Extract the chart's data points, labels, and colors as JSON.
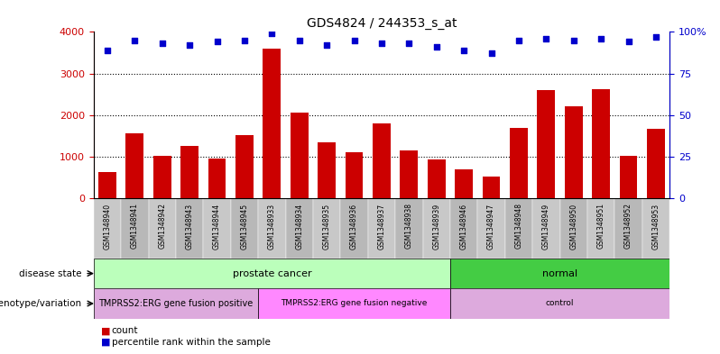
{
  "title": "GDS4824 / 244353_s_at",
  "samples": [
    "GSM1348940",
    "GSM1348941",
    "GSM1348942",
    "GSM1348943",
    "GSM1348944",
    "GSM1348945",
    "GSM1348933",
    "GSM1348934",
    "GSM1348935",
    "GSM1348936",
    "GSM1348937",
    "GSM1348938",
    "GSM1348939",
    "GSM1348946",
    "GSM1348947",
    "GSM1348948",
    "GSM1348949",
    "GSM1348950",
    "GSM1348951",
    "GSM1348952",
    "GSM1348953"
  ],
  "counts": [
    620,
    1570,
    1020,
    1260,
    960,
    1510,
    3600,
    2060,
    1350,
    1110,
    1800,
    1160,
    940,
    690,
    520,
    1690,
    2600,
    2200,
    2620,
    1020,
    1680
  ],
  "percentiles": [
    89,
    95,
    93,
    92,
    94,
    95,
    99,
    95,
    92,
    95,
    93,
    93,
    91,
    89,
    87,
    95,
    96,
    95,
    96,
    94,
    97
  ],
  "bar_color": "#cc0000",
  "dot_color": "#0000cc",
  "ylim_left": [
    0,
    4000
  ],
  "ylim_right": [
    0,
    100
  ],
  "yticks_left": [
    0,
    1000,
    2000,
    3000,
    4000
  ],
  "yticks_right": [
    0,
    25,
    50,
    75,
    100
  ],
  "ytick_right_labels": [
    "0",
    "25",
    "50",
    "75",
    "100%"
  ],
  "grid_values": [
    1000,
    2000,
    3000
  ],
  "disease_state_groups": [
    {
      "label": "prostate cancer",
      "start": 0,
      "end": 13,
      "color": "#bbffbb"
    },
    {
      "label": "normal",
      "start": 13,
      "end": 21,
      "color": "#44cc44"
    }
  ],
  "genotype_groups": [
    {
      "label": "TMPRSS2:ERG gene fusion positive",
      "start": 0,
      "end": 6,
      "color": "#ddaadd"
    },
    {
      "label": "TMPRSS2:ERG gene fusion negative",
      "start": 6,
      "end": 13,
      "color": "#ff88ff"
    },
    {
      "label": "control",
      "start": 13,
      "end": 21,
      "color": "#ddaadd"
    }
  ],
  "legend_count_color": "#cc0000",
  "legend_dot_color": "#0000cc",
  "tick_label_color_left": "#cc0000",
  "tick_label_color_right": "#0000cc",
  "xtick_bg_even": "#c8c8c8",
  "xtick_bg_odd": "#b8b8b8"
}
